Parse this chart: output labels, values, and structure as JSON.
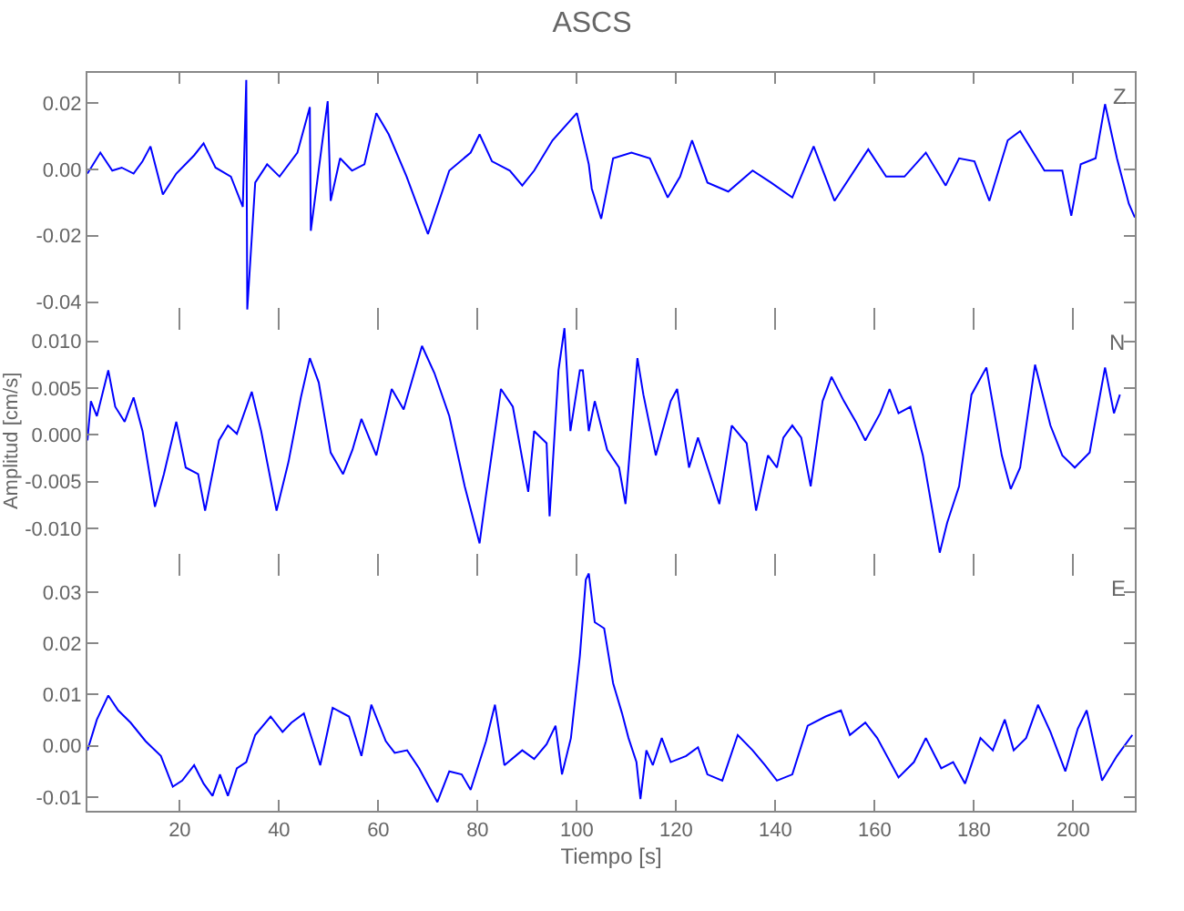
{
  "chart_data": [
    {
      "type": "line",
      "title": "ASCS",
      "annotations": [
        "Z"
      ],
      "xlim": [
        1.4,
        212.4
      ],
      "ylim": [
        -0.045,
        0.029
      ],
      "tick_labels": "y",
      "grid": false,
      "xticks": [
        20,
        40,
        60,
        80,
        100,
        120,
        140,
        160,
        180,
        200
      ],
      "yticks": [
        {
          "value": -0.04,
          "label": "-0.04"
        },
        {
          "value": -0.02,
          "label": "-0.02"
        },
        {
          "value": 0,
          "label": "0.00"
        },
        {
          "value": 0.02,
          "label": "0.02"
        }
      ],
      "series": [
        {
          "color": "#0000ff",
          "x": [
            1.4,
            4,
            6.4,
            8.3,
            10.7,
            12.5,
            14.1,
            16.6,
            19.3,
            22.9,
            24.8,
            27.2,
            30.3,
            32.7,
            33.4,
            33.6,
            35.2,
            37.6,
            40.1,
            43.7,
            46.2,
            46.4,
            48.6,
            49.8,
            50.4,
            52.3,
            54.7,
            57.2,
            59.6,
            62.1,
            65.7,
            70,
            74.3,
            78.6,
            80.4,
            82.9,
            86.5,
            89,
            91.4,
            95.1,
            100,
            102.4,
            103,
            104.9,
            107.3,
            111,
            114.7,
            118.3,
            120.8,
            123.2,
            126.3,
            130.5,
            135.4,
            139.1,
            143.4,
            147.7,
            151.9,
            158.7,
            162.3,
            166,
            170.3,
            174.3,
            177,
            180.1,
            183.1,
            186.8,
            189.3,
            194.2,
            197.8,
            199.6,
            201.5,
            204.5,
            206.4,
            208.8,
            211.2,
            212.4
          ],
          "values": [
            -0.0013,
            0.005,
            -0.0004,
            0.0005,
            -0.0013,
            0.0024,
            0.0069,
            -0.0076,
            -0.0013,
            0.0042,
            0.0078,
            0.0005,
            -0.0022,
            -0.0113,
            0.0269,
            -0.0422,
            -0.004,
            0.0015,
            -0.0022,
            0.005,
            0.0187,
            -0.0185,
            0.0069,
            0.0205,
            -0.0095,
            0.0033,
            -0.0004,
            0.0015,
            0.0169,
            0.0105,
            -0.0022,
            -0.0195,
            -0.0004,
            0.005,
            0.0105,
            0.0024,
            -0.0004,
            -0.0049,
            -0.0004,
            0.0087,
            0.0169,
            0.0015,
            -0.0058,
            -0.0149,
            0.0033,
            0.005,
            0.0033,
            -0.0085,
            -0.0022,
            0.0087,
            -0.004,
            -0.0067,
            -0.0004,
            -0.004,
            -0.0085,
            0.0069,
            -0.0095,
            0.006,
            -0.0022,
            -0.0022,
            0.005,
            -0.0049,
            0.0033,
            0.0024,
            -0.0095,
            0.0087,
            0.0115,
            -0.0004,
            -0.0004,
            -0.014,
            0.0015,
            0.0033,
            0.0196,
            0.0033,
            -0.0104,
            -0.0145
          ]
        }
      ]
    },
    {
      "type": "line",
      "ylabel": "Amplitud [cm/s]",
      "annotations": [
        "N"
      ],
      "xlim": [
        1.4,
        212.4
      ],
      "ylim": [
        -0.0139,
        0.0124
      ],
      "tick_labels": "y",
      "grid": false,
      "xticks": [
        20,
        40,
        60,
        80,
        100,
        120,
        140,
        160,
        180,
        200
      ],
      "yticks": [
        {
          "value": -0.01,
          "label": "-0.010"
        },
        {
          "value": -0.005,
          "label": "-0.005"
        },
        {
          "value": 0,
          "label": "0.000"
        },
        {
          "value": 0.005,
          "label": "0.005"
        },
        {
          "value": 0.01,
          "label": "0.010"
        }
      ],
      "series": [
        {
          "color": "#0000ff",
          "x": [
            1.4,
            2.1,
            3.3,
            5.6,
            7,
            8.9,
            10.7,
            12.5,
            15,
            16.8,
            19.3,
            21.2,
            23.7,
            25.1,
            27.9,
            29.7,
            31.5,
            34.5,
            36.4,
            39.5,
            41.9,
            44.4,
            46.2,
            48,
            50.4,
            52.9,
            54.8,
            56.6,
            59.6,
            62.7,
            65.1,
            68.8,
            71.3,
            74.3,
            77.4,
            80.4,
            81.6,
            84.7,
            87.1,
            90.2,
            91.4,
            93.9,
            94.5,
            96.3,
            97.5,
            98.7,
            100.6,
            101.2,
            102.4,
            103.6,
            106.1,
            108.5,
            109.8,
            111,
            112.2,
            113.4,
            115.9,
            118.9,
            120.2,
            122.6,
            124.4,
            128.7,
            131.2,
            134.2,
            136.1,
            138.5,
            140.3,
            141.6,
            143.4,
            145.2,
            147.1,
            149.5,
            151.3,
            153.8,
            156.2,
            158.1,
            161.1,
            163,
            164.8,
            167.2,
            169.7,
            173.1,
            174.6,
            177,
            179.5,
            182.5,
            185.6,
            187.4,
            189.3,
            192.3,
            195.4,
            197.8,
            200.3,
            203.3,
            206.4,
            208.2,
            209.4
          ],
          "values": [
            -0.0006,
            0.0036,
            0.002,
            0.0069,
            0.003,
            0.0014,
            0.004,
            0.0004,
            -0.0077,
            -0.0042,
            0.0014,
            -0.0035,
            -0.0042,
            -0.0081,
            -0.0006,
            0.001,
            0.0001,
            0.0046,
            0.0004,
            -0.0081,
            -0.0029,
            0.004,
            0.0082,
            0.0056,
            -0.0019,
            -0.0042,
            -0.0016,
            0.0017,
            -0.0022,
            0.0049,
            0.0027,
            0.0095,
            0.0066,
            0.002,
            -0.0055,
            -0.0116,
            -0.0068,
            0.0049,
            0.003,
            -0.0061,
            0.0004,
            -0.0009,
            -0.0087,
            0.0069,
            0.0114,
            0.0004,
            0.0069,
            0.0069,
            0.0004,
            0.0036,
            -0.0016,
            -0.0035,
            -0.0074,
            0.0004,
            0.0082,
            0.0043,
            -0.0022,
            0.0036,
            0.0049,
            -0.0035,
            -0.0003,
            -0.0074,
            0.001,
            -0.0009,
            -0.0081,
            -0.0022,
            -0.0035,
            -0.0003,
            0.001,
            -0.0003,
            -0.0055,
            0.0036,
            0.0062,
            0.0036,
            0.0014,
            -0.0006,
            0.0023,
            0.0049,
            0.0023,
            0.003,
            -0.0022,
            -0.0126,
            -0.0094,
            -0.0055,
            0.0043,
            0.0072,
            -0.0022,
            -0.0058,
            -0.0035,
            0.0075,
            0.001,
            -0.0022,
            -0.0035,
            -0.0019,
            0.0072,
            0.0023,
            0.0043
          ]
        }
      ]
    },
    {
      "type": "line",
      "xlabel": "Tiempo [s]",
      "annotations": [
        "E"
      ],
      "xlim": [
        1.4,
        212.4
      ],
      "ylim": [
        -0.0127,
        0.0353
      ],
      "grid": false,
      "xticks": [
        20,
        40,
        60,
        80,
        100,
        120,
        140,
        160,
        180,
        200
      ],
      "yticks": [
        {
          "value": -0.01,
          "label": "-0.01"
        },
        {
          "value": 0,
          "label": "0.00"
        },
        {
          "value": 0.01,
          "label": "0.01"
        },
        {
          "value": 0.02,
          "label": "0.02"
        },
        {
          "value": 0.03,
          "label": "0.03"
        }
      ],
      "series": [
        {
          "color": "#0000ff",
          "x": [
            1.4,
            3.3,
            5.6,
            7.6,
            10.1,
            13.1,
            16.2,
            18.6,
            20.5,
            22.9,
            24.8,
            26.6,
            28.1,
            29.7,
            31.5,
            33.4,
            35.2,
            38.3,
            40.7,
            42.5,
            45,
            48.3,
            50.8,
            54.1,
            56.6,
            58.6,
            61.5,
            63.3,
            65.8,
            68.2,
            71.9,
            74.3,
            76.8,
            78.6,
            81.7,
            83.5,
            85.4,
            89,
            91.4,
            93.9,
            95.7,
            97,
            98.8,
            100.6,
            101.8,
            102.4,
            103.6,
            105.5,
            107.3,
            109.1,
            110.4,
            112,
            112.8,
            114,
            115.3,
            117.1,
            118.9,
            122,
            124.4,
            126.3,
            129.3,
            132.4,
            135.4,
            137.9,
            140.3,
            143.4,
            146.5,
            150.1,
            153.2,
            155,
            158.1,
            160.5,
            164.8,
            167.9,
            170.3,
            173.4,
            175.8,
            178.2,
            181.3,
            183.8,
            186.2,
            188,
            190.5,
            192.9,
            195.4,
            198.4,
            200.9,
            202.7,
            205.8,
            208.8,
            211.9
          ],
          "values": [
            -0.0009,
            0.0051,
            0.0098,
            0.0069,
            0.0045,
            0.0009,
            -0.002,
            -0.008,
            -0.0068,
            -0.0038,
            -0.0074,
            -0.0098,
            -0.0056,
            -0.0098,
            -0.0044,
            -0.0032,
            0.0021,
            0.0057,
            0.0027,
            0.0045,
            0.0063,
            -0.0038,
            0.0074,
            0.0057,
            -0.002,
            0.008,
            0.0009,
            -0.0014,
            -0.0009,
            -0.0044,
            -0.011,
            -0.005,
            -0.0056,
            -0.0086,
            0.0009,
            0.008,
            -0.0038,
            -0.0009,
            -0.0026,
            0.0003,
            0.0039,
            -0.0056,
            0.0015,
            0.0175,
            0.0324,
            0.0336,
            0.0241,
            0.0229,
            0.0122,
            0.0063,
            0.0015,
            -0.0032,
            -0.0104,
            -0.0009,
            -0.0038,
            0.0015,
            -0.0032,
            -0.002,
            -0.0003,
            -0.0056,
            -0.0068,
            0.0021,
            -0.0009,
            -0.0038,
            -0.0068,
            -0.0056,
            0.0039,
            0.0057,
            0.0069,
            0.0021,
            0.0045,
            0.0015,
            -0.0062,
            -0.0032,
            0.0015,
            -0.0044,
            -0.0032,
            -0.0074,
            0.0015,
            -0.0009,
            0.0051,
            -0.0009,
            0.0015,
            0.008,
            0.0027,
            -0.005,
            0.0033,
            0.0069,
            -0.0068,
            -0.002,
            0.0021
          ]
        }
      ]
    }
  ]
}
